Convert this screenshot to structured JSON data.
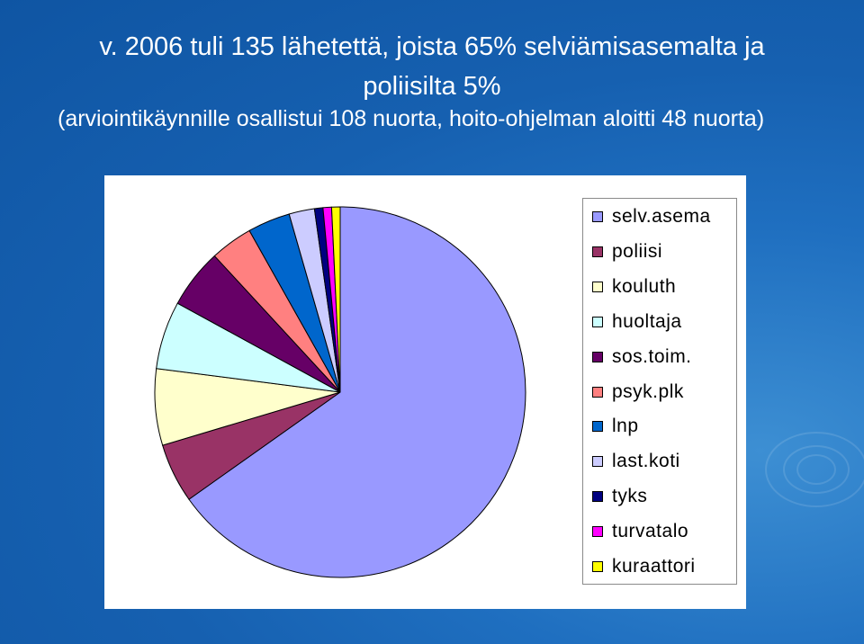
{
  "title": {
    "line1": "v. 2006 tuli 135 lähetettä, joista 65% selviämisasemalta  ja",
    "line2": "poliisilta 5%",
    "line3": "(arviointikäynnille osallistui 108 nuorta, hoito-ohjelman aloitti 48 nuorta)"
  },
  "chart_data": {
    "type": "pie",
    "title": "",
    "legend_position": "right",
    "slices": [
      {
        "label": "selv.asema",
        "value": 88,
        "color": "#9999ff"
      },
      {
        "label": "poliisi",
        "value": 7,
        "color": "#993366"
      },
      {
        "label": "kouluth",
        "value": 9,
        "color": "#ffffcc"
      },
      {
        "label": "huoltaja",
        "value": 8,
        "color": "#ccffff"
      },
      {
        "label": "sos.toim.",
        "value": 7,
        "color": "#660066"
      },
      {
        "label": "psyk.plk",
        "value": 5,
        "color": "#ff8080"
      },
      {
        "label": "lnp",
        "value": 5,
        "color": "#0066cc"
      },
      {
        "label": "last.koti",
        "value": 3,
        "color": "#ccccff"
      },
      {
        "label": "tyks",
        "value": 1,
        "color": "#000080"
      },
      {
        "label": "turvatalo",
        "value": 1,
        "color": "#ff00ff"
      },
      {
        "label": "kuraattori",
        "value": 1,
        "color": "#ffff00"
      }
    ]
  }
}
